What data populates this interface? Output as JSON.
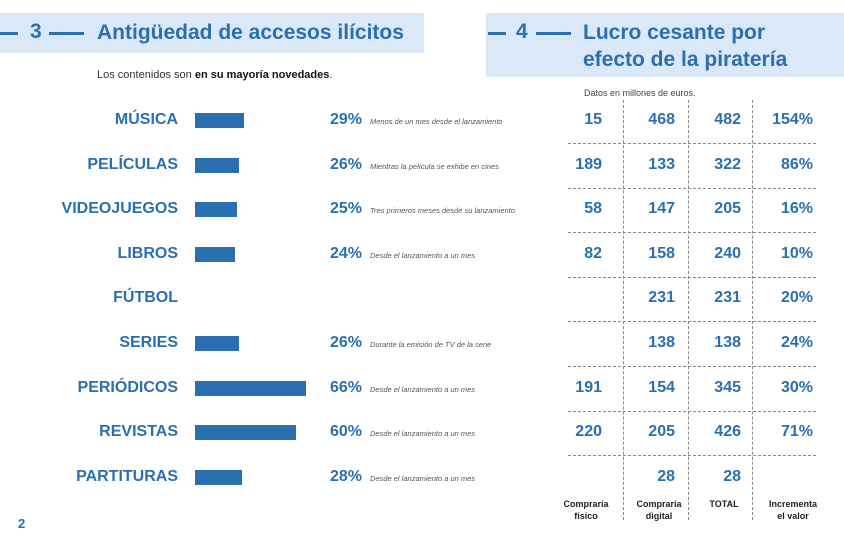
{
  "page_number": "2",
  "section3": {
    "number": "3",
    "title": "Antigüedad de accesos ilícitos",
    "subtitle_normal": "Los contenidos son ",
    "subtitle_bold": "en su mayoría novedades",
    "subtitle_end": "."
  },
  "section4": {
    "number": "4",
    "title_line1": "Lucro cesante  por",
    "title_line2": "efecto de la piratería",
    "note": "Datos en millones de euros."
  },
  "column_headers": [
    {
      "line1": "Compraría",
      "line2": "físico"
    },
    {
      "line1": "Compraría",
      "line2": "digital"
    },
    {
      "line1": "TOTAL",
      "line2": ""
    },
    {
      "line1": "Incrementa",
      "line2": "el valor"
    }
  ],
  "colors": {
    "accent": "#2a6fb0",
    "header_bg": "#dbe8f7"
  },
  "chart_data": [
    {
      "type": "bar",
      "title": "Antigüedad de accesos ilícitos",
      "categories": [
        "MÚSICA",
        "PELÍCULAS",
        "VIDEOJUEGOS",
        "LIBROS",
        "FÚTBOL",
        "SERIES",
        "PERIÓDICOS",
        "REVISTAS",
        "PARTITURAS"
      ],
      "values": [
        29,
        26,
        25,
        24,
        null,
        26,
        66,
        60,
        28
      ],
      "value_labels": [
        "29%",
        "26%",
        "25%",
        "24%",
        "",
        "26%",
        "66%",
        "60%",
        "28%"
      ],
      "descriptions": [
        "Menos de un mes desde el lanzamiento",
        "Mientras la película se exhibe en cines",
        "Tres primeros meses desde su lanzamiento",
        "Desde el lanzamiento a un mes",
        "",
        "Durante la emisión de TV de la serie",
        "Desde el lanzamiento a un mes",
        "Desde el lanzamiento a un mes",
        "Desde el lanzamiento a un mes"
      ]
    },
    {
      "type": "table",
      "title": "Lucro cesante por efecto de la piratería",
      "columns": [
        "Compraría físico",
        "Compraría digital",
        "TOTAL",
        "Incrementa el valor"
      ],
      "rows": [
        [
          "15",
          "468",
          "482",
          "154%"
        ],
        [
          "189",
          "133",
          "322",
          "86%"
        ],
        [
          "58",
          "147",
          "205",
          "16%"
        ],
        [
          "82",
          "158",
          "240",
          "10%"
        ],
        [
          "",
          "231",
          "231",
          "20%"
        ],
        [
          "",
          "138",
          "138",
          "24%"
        ],
        [
          "191",
          "154",
          "345",
          "30%"
        ],
        [
          "220",
          "205",
          "426",
          "71%"
        ],
        [
          "",
          "28",
          "28",
          ""
        ]
      ]
    }
  ]
}
